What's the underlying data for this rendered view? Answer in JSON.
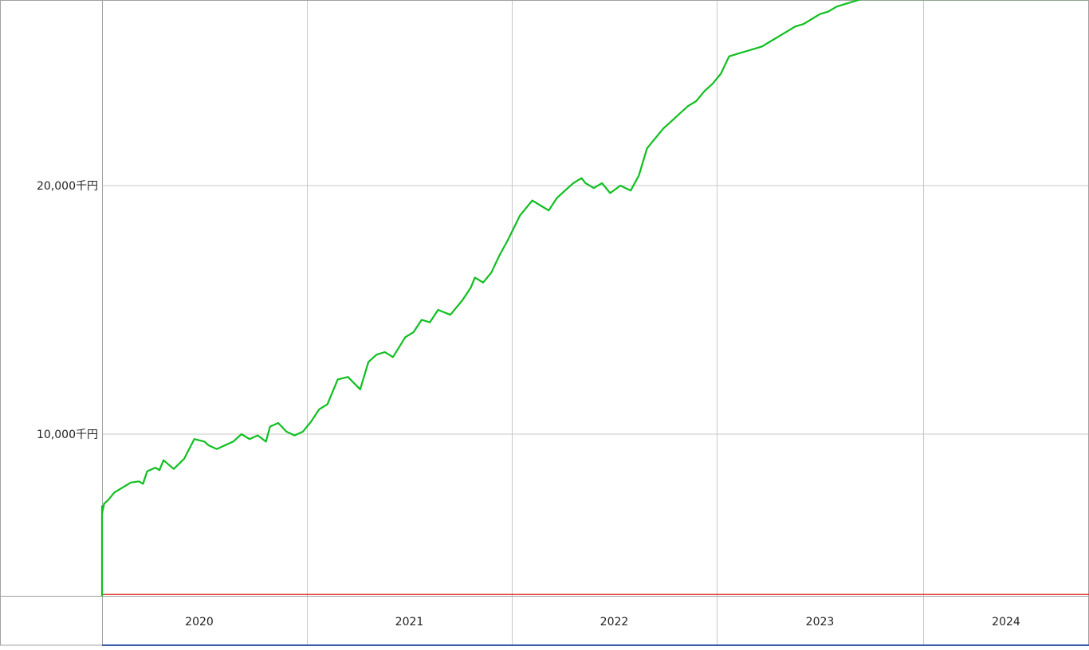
{
  "chart_data": {
    "type": "line",
    "title": "",
    "xlabel": "",
    "ylabel": "",
    "x_unit": "year",
    "y_unit": "千円",
    "grid": true,
    "legend": "none",
    "xlim": [
      2019.53,
      2024.8
    ],
    "ylim": [
      3100,
      27500
    ],
    "y_ticks": [
      10000,
      20000
    ],
    "y_tick_labels": [
      "10,000千円",
      "20,000千円"
    ],
    "x_boundaries": [
      2020,
      2021,
      2022,
      2023,
      2024
    ],
    "x_ticks": [
      2020,
      2021,
      2022,
      2023,
      2024
    ],
    "x_tick_labels": [
      "2020",
      "2021",
      "2022",
      "2023",
      "2024"
    ],
    "reference_line": {
      "value": 3550,
      "color": "#e02020"
    },
    "series": [
      {
        "color": "#0fbf1f",
        "x": [
          2019.53,
          2019.55,
          2019.58,
          2019.59,
          2019.6,
          2019.63,
          2019.65,
          2019.67,
          2019.69,
          2019.71,
          2019.73,
          2019.75,
          2019.77,
          2019.79,
          2019.81,
          2019.83,
          2019.86,
          2019.88,
          2019.9,
          2019.92,
          2019.94,
          2019.95,
          2019.98,
          2020.01,
          2020.03,
          2020.06,
          2020.1,
          2020.14,
          2020.18,
          2020.2,
          2020.22,
          2020.26,
          2020.28,
          2020.3,
          2020.35,
          2020.4,
          2020.45,
          2020.5,
          2020.52,
          2020.56,
          2020.6,
          2020.64,
          2020.68,
          2020.72,
          2020.76,
          2020.8,
          2020.82,
          2020.86,
          2020.9,
          2020.94,
          2020.98,
          2021.02,
          2021.06,
          2021.1,
          2021.15,
          2021.2,
          2021.26,
          2021.3,
          2021.34,
          2021.38,
          2021.42,
          2021.48,
          2021.52,
          2021.56,
          2021.6,
          2021.64,
          2021.7,
          2021.76,
          2021.8,
          2021.82,
          2021.86,
          2021.9,
          2021.94,
          2021.98,
          2022.04,
          2022.1,
          2022.14,
          2022.18,
          2022.22,
          2022.26,
          2022.3,
          2022.34,
          2022.36,
          2022.4,
          2022.44,
          2022.48,
          2022.53,
          2022.58,
          2022.62,
          2022.66,
          2022.7,
          2022.74,
          2022.78,
          2022.82,
          2022.86,
          2022.9,
          2022.94,
          2022.98,
          2023.02,
          2023.06,
          2023.1,
          2023.14,
          2023.18,
          2023.22,
          2023.26,
          2023.3,
          2023.34,
          2023.38,
          2023.42,
          2023.46,
          2023.5,
          2023.54,
          2023.58,
          2023.62,
          2023.66,
          2023.7,
          2023.74,
          2023.78,
          2023.82,
          2023.86,
          2023.9,
          2023.94,
          2023.98,
          2024.02,
          2024.05,
          2024.08,
          2024.12,
          2024.16,
          2024.2,
          2024.24,
          2024.28,
          2024.32,
          2024.36,
          2024.42,
          2024.46,
          2024.5,
          2024.54,
          2024.56,
          2024.6,
          2024.64,
          2024.68,
          2024.72,
          2024.76,
          2024.8
        ],
        "y": [
          3550,
          3500,
          3600,
          4800,
          5050,
          5000,
          5250,
          4700,
          4550,
          4700,
          5200,
          5400,
          5800,
          6100,
          6300,
          6400,
          6900,
          7100,
          7000,
          6800,
          6600,
          6500,
          6800,
          7200,
          7350,
          7650,
          7850,
          8050,
          8100,
          8000,
          8500,
          8650,
          8550,
          8950,
          8600,
          9000,
          9800,
          9700,
          9550,
          9400,
          9550,
          9700,
          10000,
          9800,
          9950,
          9700,
          10300,
          10450,
          10100,
          9950,
          10100,
          10500,
          11000,
          11200,
          12200,
          12300,
          11800,
          12900,
          13200,
          13300,
          13100,
          13900,
          14100,
          14600,
          14500,
          15000,
          14800,
          15400,
          15900,
          16300,
          16100,
          16500,
          17200,
          17800,
          18800,
          19400,
          19200,
          19000,
          19500,
          19800,
          20100,
          20300,
          20100,
          19900,
          20100,
          19700,
          20000,
          19800,
          20400,
          21500,
          21900,
          22300,
          22600,
          22900,
          23200,
          23400,
          23800,
          24100,
          24500,
          25200,
          25300,
          25400,
          25500,
          25600,
          25800,
          26000,
          26200,
          26400,
          26500,
          26700,
          26900,
          27000,
          27200,
          27300,
          27400,
          27500,
          27500,
          27500,
          27500,
          27500,
          27500,
          27500,
          27500,
          27500,
          27500,
          27500,
          27500,
          27500,
          27500,
          27500,
          27500,
          27500,
          27500,
          27500,
          27500,
          27500,
          27500,
          27500,
          27500,
          27500,
          27500,
          27500,
          27500,
          27500
        ]
      }
    ]
  }
}
